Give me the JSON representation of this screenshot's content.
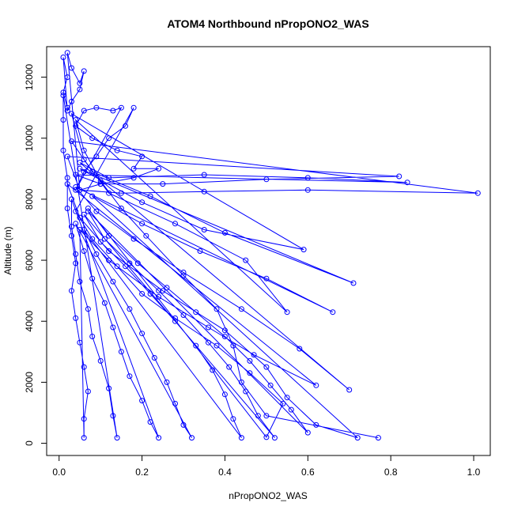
{
  "chart_data": {
    "type": "scatter",
    "title": "ATOM4 Northbound nPropONO2_WAS",
    "xlabel": "nPropONO2_WAS",
    "ylabel": "Altitude (m)",
    "xlim": [
      -0.03,
      1.04
    ],
    "ylim": [
      -400,
      13000
    ],
    "xticks": [
      "0.0",
      "0.2",
      "0.4",
      "0.6",
      "0.8",
      "1.0"
    ],
    "yticks": [
      "0",
      "2000",
      "4000",
      "6000",
      "8000",
      "10000",
      "12000"
    ],
    "grid": false,
    "legend": "none",
    "marker": "open-circle",
    "connected": true,
    "series": [
      {
        "points": [
          [
            0.77,
            180
          ],
          [
            0.5,
            900
          ],
          [
            0.44,
            2000
          ],
          [
            0.42,
            3200
          ],
          [
            0.38,
            4400
          ],
          [
            0.3,
            5500
          ],
          [
            0.21,
            6800
          ],
          [
            0.15,
            7700
          ],
          [
            0.1,
            8600
          ],
          [
            0.06,
            9600
          ],
          [
            0.04,
            10600
          ],
          [
            0.55,
            4300
          ],
          [
            0.45,
            6000
          ],
          [
            0.28,
            7200
          ],
          [
            0.12,
            8200
          ],
          [
            0.06,
            9300
          ],
          [
            0.03,
            10800
          ],
          [
            0.59,
            6350
          ],
          [
            0.35,
            7000
          ],
          [
            0.2,
            7900
          ],
          [
            0.05,
            9000
          ],
          [
            0.71,
            5250
          ],
          [
            0.4,
            6900
          ],
          [
            0.22,
            8100
          ],
          [
            0.08,
            8900
          ],
          [
            0.03,
            9900
          ],
          [
            1.01,
            8200
          ],
          [
            0.6,
            8300
          ],
          [
            0.35,
            8250
          ],
          [
            0.15,
            8200
          ],
          [
            0.05,
            8300
          ],
          [
            0.02,
            9400
          ],
          [
            0.82,
            8750
          ],
          [
            0.5,
            8650
          ],
          [
            0.25,
            8500
          ],
          [
            0.1,
            8500
          ],
          [
            0.04,
            8800
          ],
          [
            0.84,
            8550
          ],
          [
            0.6,
            8700
          ],
          [
            0.35,
            8800
          ],
          [
            0.12,
            8700
          ],
          [
            0.05,
            9200
          ],
          [
            0.7,
            1750
          ],
          [
            0.58,
            3100
          ],
          [
            0.44,
            4400
          ],
          [
            0.3,
            5600
          ],
          [
            0.18,
            6700
          ],
          [
            0.09,
            7600
          ],
          [
            0.04,
            8400
          ],
          [
            0.66,
            4300
          ],
          [
            0.5,
            5400
          ],
          [
            0.34,
            6300
          ],
          [
            0.2,
            7200
          ],
          [
            0.08,
            8100
          ],
          [
            0.72,
            180
          ],
          [
            0.62,
            600
          ],
          [
            0.55,
            1500
          ],
          [
            0.5,
            2500
          ],
          [
            0.4,
            3700
          ],
          [
            0.25,
            5000
          ],
          [
            0.12,
            6300
          ],
          [
            0.05,
            7400
          ],
          [
            0.02,
            8500
          ],
          [
            0.62,
            1900
          ],
          [
            0.47,
            2900
          ],
          [
            0.36,
            3800
          ],
          [
            0.24,
            4800
          ],
          [
            0.12,
            6000
          ],
          [
            0.05,
            7000
          ],
          [
            0.06,
            180
          ],
          [
            0.06,
            800
          ],
          [
            0.07,
            1700
          ],
          [
            0.06,
            2500
          ],
          [
            0.05,
            3300
          ],
          [
            0.04,
            4100
          ],
          [
            0.03,
            5000
          ],
          [
            0.04,
            5900
          ],
          [
            0.03,
            6800
          ],
          [
            0.02,
            7700
          ],
          [
            0.02,
            8700
          ],
          [
            0.01,
            9600
          ],
          [
            0.01,
            10600
          ],
          [
            0.01,
            11400
          ],
          [
            0.14,
            180
          ],
          [
            0.13,
            900
          ],
          [
            0.12,
            1800
          ],
          [
            0.1,
            2700
          ],
          [
            0.08,
            3500
          ],
          [
            0.07,
            4400
          ],
          [
            0.05,
            5300
          ],
          [
            0.04,
            6200
          ],
          [
            0.03,
            7100
          ],
          [
            0.03,
            8000
          ],
          [
            0.24,
            180
          ],
          [
            0.22,
            700
          ],
          [
            0.2,
            1400
          ],
          [
            0.17,
            2200
          ],
          [
            0.15,
            3000
          ],
          [
            0.13,
            3800
          ],
          [
            0.11,
            4600
          ],
          [
            0.08,
            5400
          ],
          [
            0.06,
            6300
          ],
          [
            0.04,
            7200
          ],
          [
            0.32,
            180
          ],
          [
            0.3,
            600
          ],
          [
            0.28,
            1300
          ],
          [
            0.26,
            2000
          ],
          [
            0.23,
            2800
          ],
          [
            0.2,
            3600
          ],
          [
            0.17,
            4400
          ],
          [
            0.13,
            5300
          ],
          [
            0.09,
            6200
          ],
          [
            0.06,
            7000
          ],
          [
            0.44,
            180
          ],
          [
            0.42,
            800
          ],
          [
            0.4,
            1600
          ],
          [
            0.37,
            2400
          ],
          [
            0.33,
            3200
          ],
          [
            0.28,
            4000
          ],
          [
            0.22,
            4900
          ],
          [
            0.16,
            5800
          ],
          [
            0.1,
            6600
          ],
          [
            0.06,
            7500
          ],
          [
            0.52,
            180
          ],
          [
            0.48,
            900
          ],
          [
            0.45,
            1700
          ],
          [
            0.41,
            2500
          ],
          [
            0.36,
            3300
          ],
          [
            0.3,
            4200
          ],
          [
            0.24,
            5000
          ],
          [
            0.17,
            5900
          ],
          [
            0.11,
            6700
          ],
          [
            0.07,
            7600
          ],
          [
            0.6,
            350
          ],
          [
            0.56,
            1100
          ],
          [
            0.51,
            1900
          ],
          [
            0.46,
            2700
          ],
          [
            0.4,
            3500
          ],
          [
            0.33,
            4300
          ],
          [
            0.26,
            5100
          ],
          [
            0.19,
            5900
          ],
          [
            0.12,
            6800
          ],
          [
            0.07,
            7700
          ],
          [
            0.5,
            200
          ],
          [
            0.54,
            1300
          ],
          [
            0.46,
            2300
          ],
          [
            0.38,
            3200
          ],
          [
            0.28,
            4100
          ],
          [
            0.2,
            4900
          ],
          [
            0.14,
            5800
          ],
          [
            0.08,
            6700
          ],
          [
            0.04,
            7600
          ],
          [
            0.18,
            11000
          ],
          [
            0.16,
            10400
          ],
          [
            0.12,
            10000
          ],
          [
            0.09,
            9400
          ],
          [
            0.06,
            8900
          ],
          [
            0.04,
            8300
          ],
          [
            0.15,
            11000
          ],
          [
            0.13,
            10900
          ],
          [
            0.09,
            11000
          ],
          [
            0.06,
            10900
          ],
          [
            0.04,
            10400
          ],
          [
            0.08,
            10000
          ],
          [
            0.14,
            9600
          ],
          [
            0.2,
            9400
          ],
          [
            0.18,
            9000
          ],
          [
            0.24,
            9000
          ],
          [
            0.18,
            8700
          ],
          [
            0.1,
            8500
          ],
          [
            0.05,
            8300
          ],
          [
            0.02,
            12800
          ],
          [
            0.03,
            12300
          ],
          [
            0.05,
            11800
          ],
          [
            0.06,
            12200
          ],
          [
            0.05,
            11600
          ],
          [
            0.03,
            11200
          ],
          [
            0.02,
            10900
          ],
          [
            0.01,
            12650
          ],
          [
            0.02,
            12000
          ],
          [
            0.01,
            11500
          ],
          [
            0.02,
            11000
          ]
        ]
      }
    ]
  }
}
